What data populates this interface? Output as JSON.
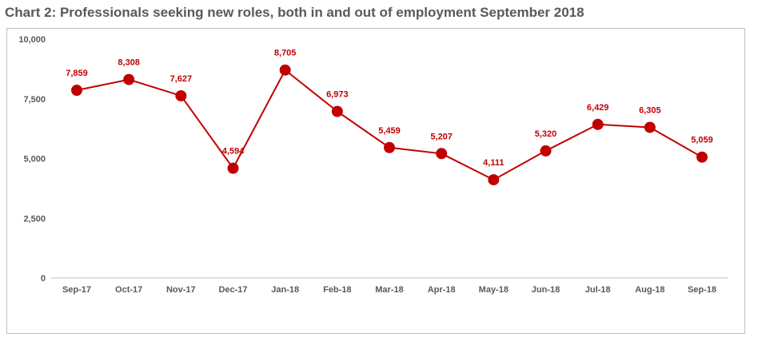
{
  "title": "Chart 2: Professionals seeking new roles, both in and out of employment September 2018",
  "colors": {
    "series": "#c00000",
    "axis": "#bfbfbf",
    "text": "#595959"
  },
  "chart_data": {
    "type": "line",
    "title": "Chart 2: Professionals seeking new roles, both in and out of employment September 2018",
    "xlabel": "",
    "ylabel": "",
    "ylim": [
      0,
      10000
    ],
    "yticks": [
      "0",
      "2,500",
      "5,000",
      "7,500",
      "10,000"
    ],
    "ytick_values": [
      0,
      2500,
      5000,
      7500,
      10000
    ],
    "grid": false,
    "legend": "none",
    "categories": [
      "Sep-17",
      "Oct-17",
      "Nov-17",
      "Dec-17",
      "Jan-18",
      "Feb-18",
      "Mar-18",
      "Apr-18",
      "May-18",
      "Jun-18",
      "Jul-18",
      "Aug-18",
      "Sep-18"
    ],
    "series": [
      {
        "values": [
          7859,
          8308,
          7627,
          4594,
          8705,
          6973,
          5459,
          5207,
          4111,
          5320,
          6429,
          6305,
          5059
        ],
        "labels": [
          "7,859",
          "8,308",
          "7,627",
          "4,594",
          "8,705",
          "6,973",
          "5,459",
          "5,207",
          "4,111",
          "5,320",
          "6,429",
          "6,305",
          "5,059"
        ]
      }
    ]
  }
}
